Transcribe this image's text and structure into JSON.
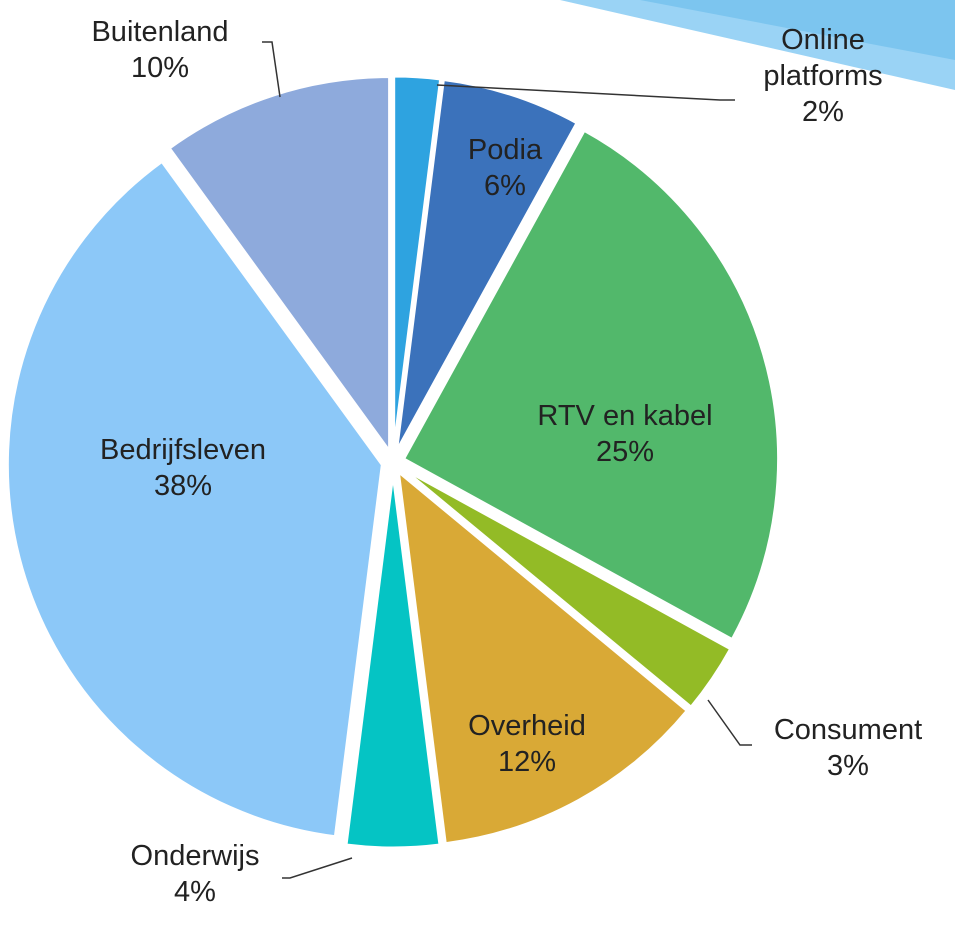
{
  "chart_data": {
    "type": "pie",
    "categories": [
      "Online platforms",
      "Podia",
      "RTV en kabel",
      "Consument",
      "Overheid",
      "Onderwijs",
      "Bedrijfsleven",
      "Buitenland"
    ],
    "values": [
      2,
      6,
      25,
      3,
      12,
      4,
      38,
      10
    ],
    "value_labels": [
      "2%",
      "6%",
      "25%",
      "3%",
      "12%",
      "4%",
      "38%",
      "10%"
    ],
    "colors": [
      "#2ea3e0",
      "#3b72bb",
      "#52b86b",
      "#93bb26",
      "#d9a936",
      "#05c4c4",
      "#8cc8f8",
      "#8eaadc"
    ]
  }
}
